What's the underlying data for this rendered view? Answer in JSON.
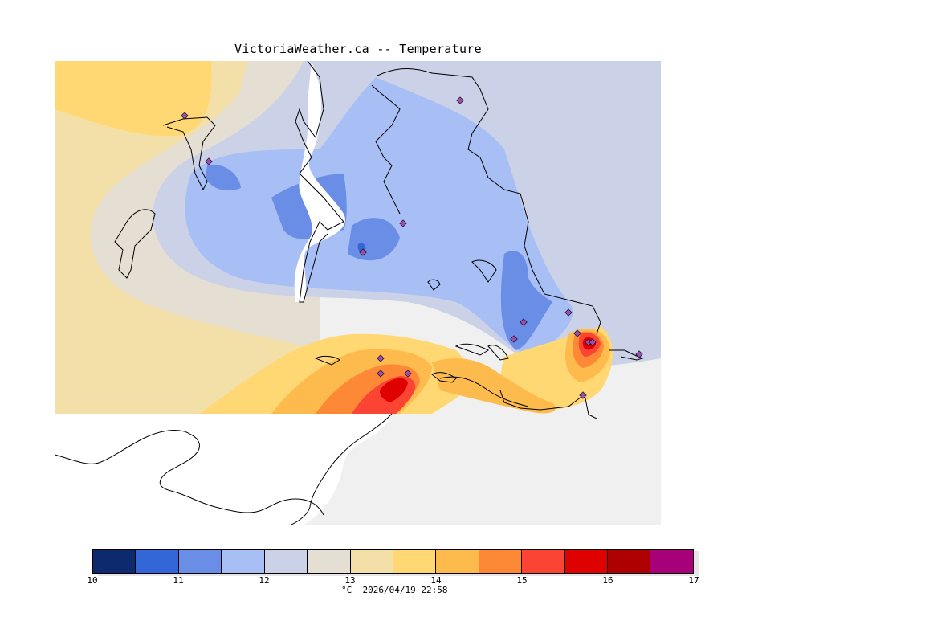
{
  "title": "VictoriaWeather.ca -- Temperature",
  "legend": {
    "ticks": [
      "10",
      "11",
      "12",
      "13",
      "14",
      "15",
      "16",
      "17"
    ],
    "colors": [
      "#0d2a6e",
      "#3366d6",
      "#6a8ee6",
      "#a7bff5",
      "#cbd1e6",
      "#e5ded3",
      "#f3dfa8",
      "#ffd873",
      "#fdbb4d",
      "#fd8835",
      "#fb4434",
      "#df0000",
      "#ae0000",
      "#a80078"
    ],
    "unit_label": "°C",
    "timestamp": "2026/04/19 22:58"
  },
  "map": {
    "fill_background": "#f0f0f0",
    "land_color": "#ffffff",
    "coast_color": "#000000",
    "station_marker_color": "#9a4fb0"
  }
}
